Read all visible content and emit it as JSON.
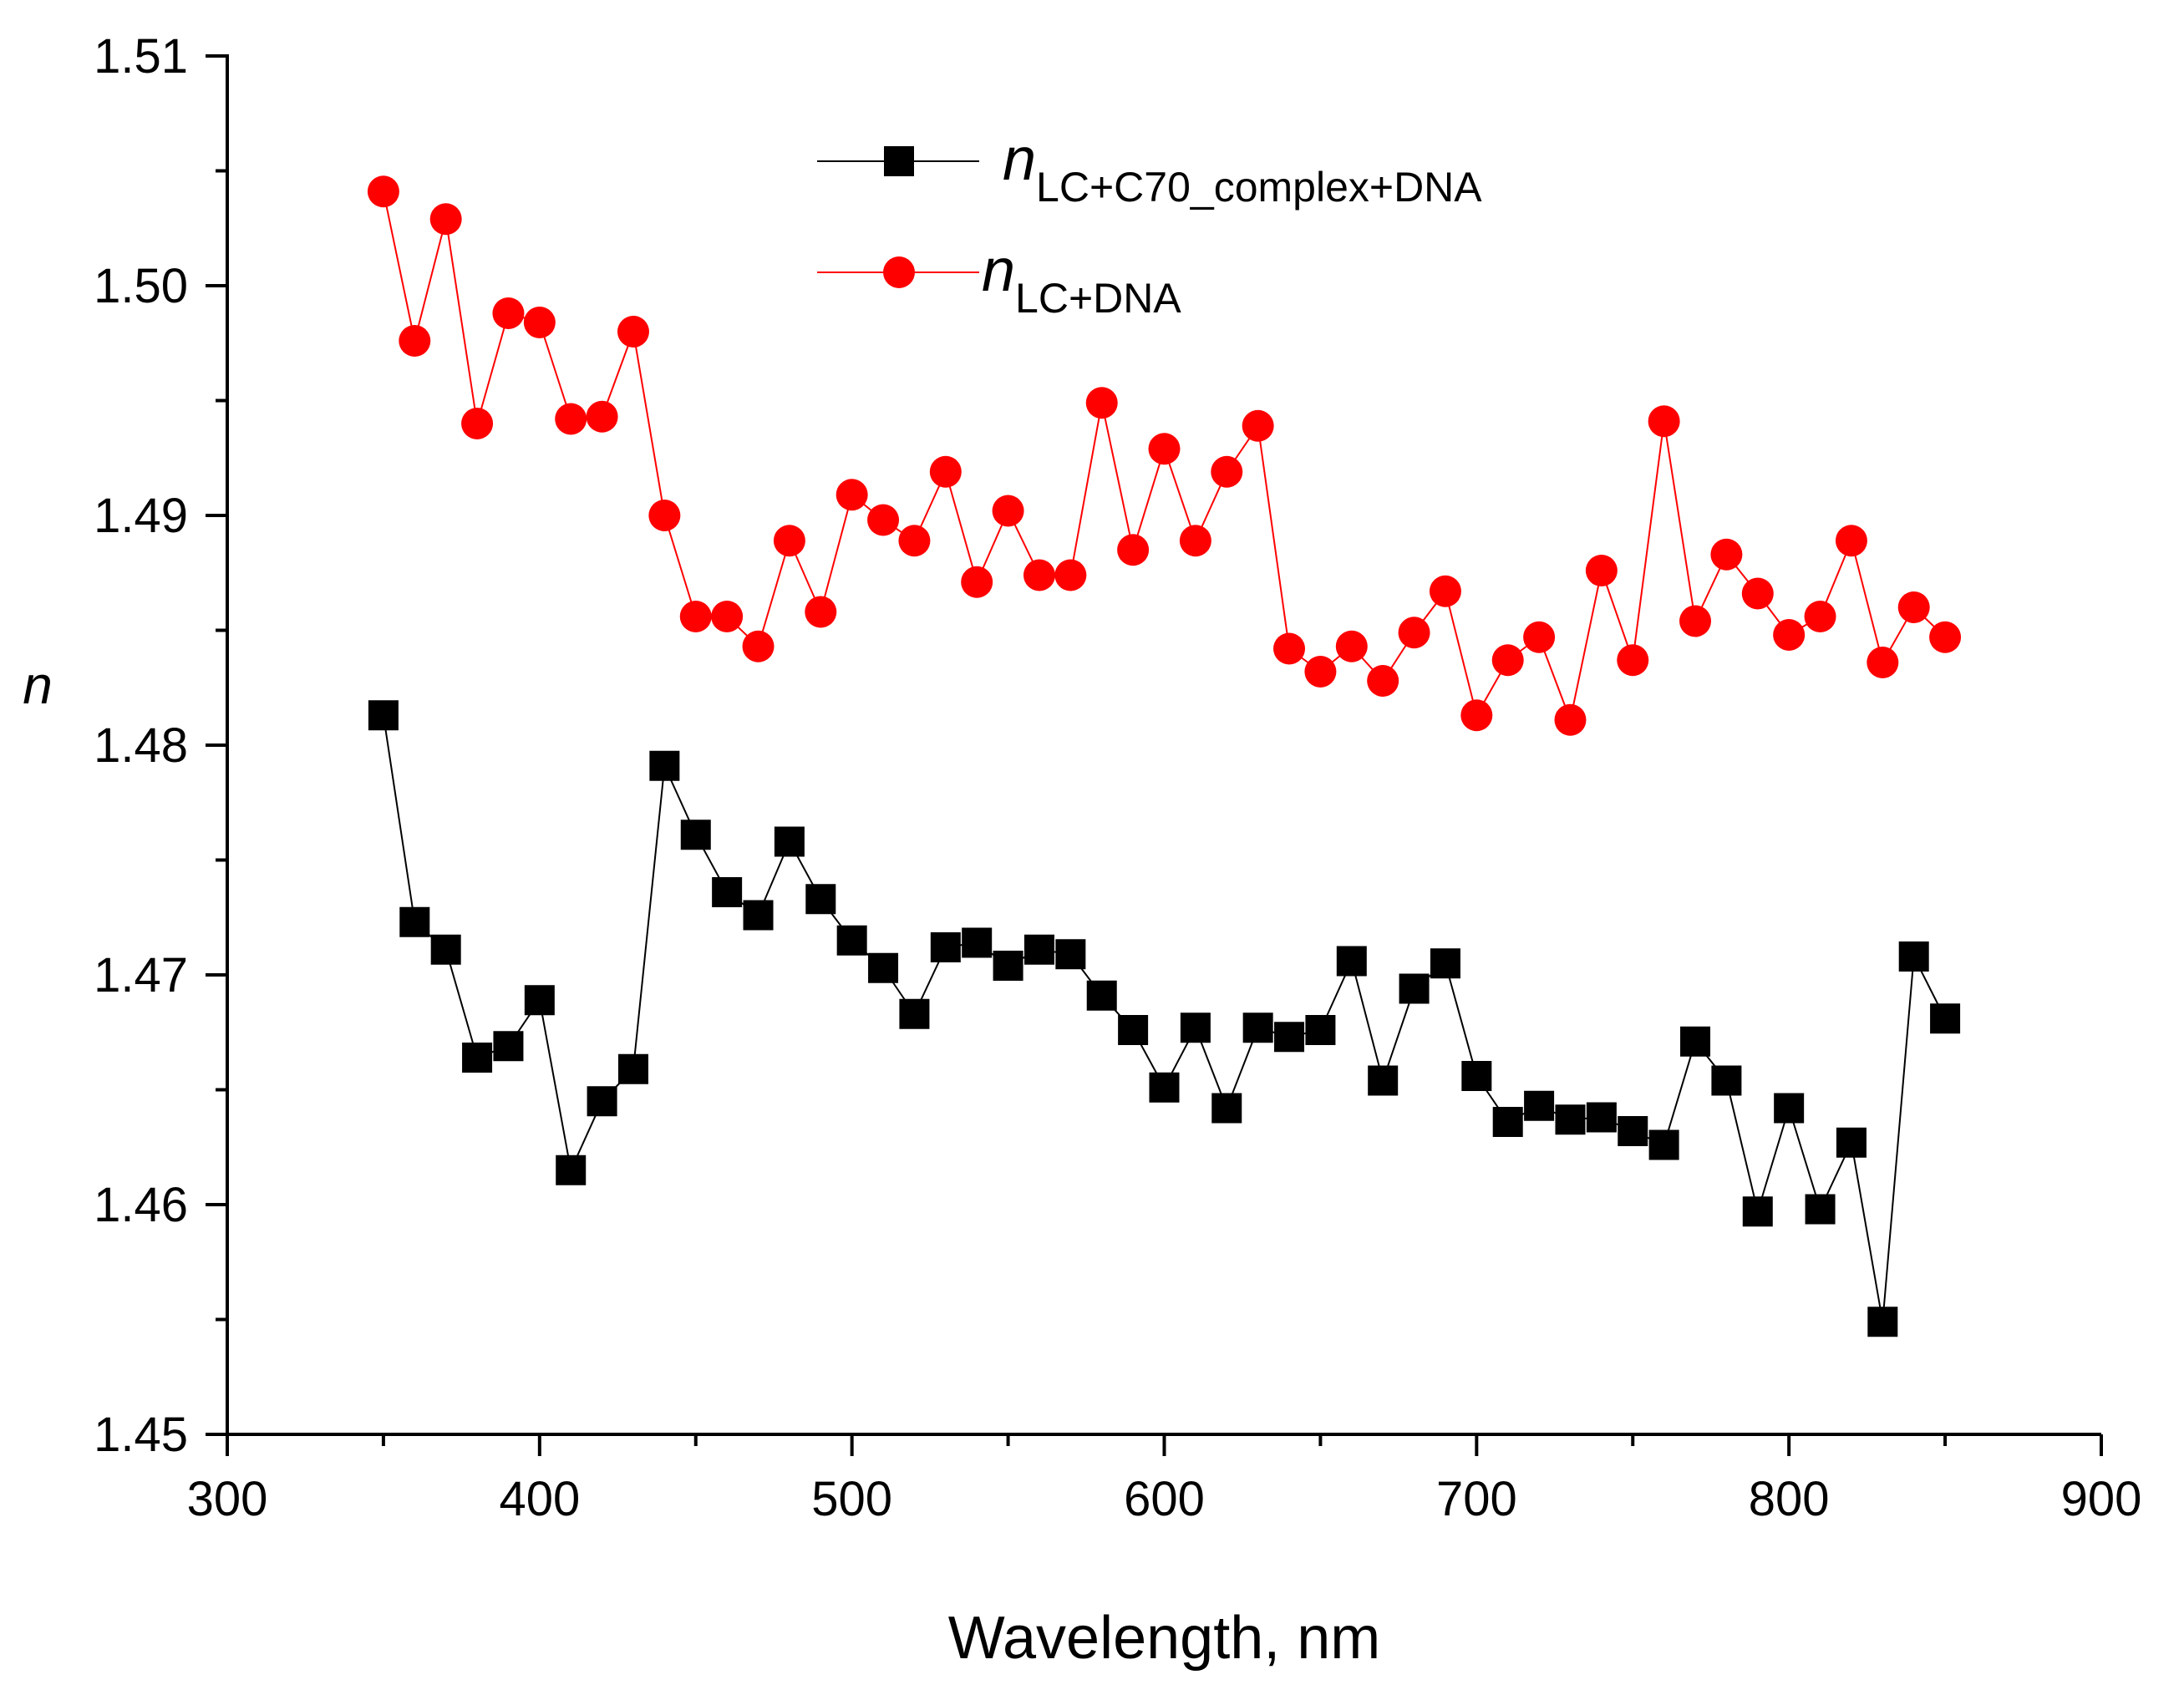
{
  "chart_data": {
    "type": "line",
    "title": "",
    "xlabel": "Wavelength, nm",
    "ylabel": "n",
    "xlim": [
      300,
      900
    ],
    "ylim": [
      1.45,
      1.51
    ],
    "xticks": [
      "300",
      "400",
      "500",
      "600",
      "700",
      "800",
      "900"
    ],
    "yticks": [
      "1.45",
      "1.46",
      "1.47",
      "1.48",
      "1.49",
      "1.50",
      "1.51"
    ],
    "x": [
      350,
      360,
      370,
      380,
      390,
      400,
      410,
      420,
      430,
      440,
      450,
      460,
      470,
      480,
      490,
      500,
      510,
      520,
      530,
      540,
      550,
      560,
      570,
      580,
      590,
      600,
      610,
      620,
      630,
      640,
      650,
      660,
      670,
      680,
      690,
      700,
      710,
      720,
      730,
      740,
      750,
      760,
      770,
      780,
      790,
      800,
      810,
      820,
      830,
      840,
      850
    ],
    "legend_position": "top-center",
    "series": [
      {
        "name": "LC+C70_complex+DNA",
        "legend_symbol": "n",
        "legend_subscript": "LC+C70_complex+DNA",
        "color": "#000000",
        "marker": "square",
        "values": [
          1.4813,
          1.4723,
          1.4711,
          1.4664,
          1.4669,
          1.4689,
          1.4615,
          1.4645,
          1.4659,
          1.4791,
          1.4761,
          1.4736,
          1.4726,
          1.4758,
          1.4733,
          1.4715,
          1.4703,
          1.4683,
          1.4712,
          1.4714,
          1.4704,
          1.4711,
          1.4709,
          1.4691,
          1.4676,
          1.4651,
          1.4677,
          1.4642,
          1.4677,
          1.4673,
          1.4676,
          1.4706,
          1.4654,
          1.4694,
          1.4705,
          1.4656,
          1.4636,
          1.4643,
          1.4637,
          1.4638,
          1.4632,
          1.4626,
          1.4671,
          1.4654,
          1.4597,
          1.4642,
          1.4598,
          1.4627,
          1.4549,
          1.4708,
          1.4681
        ]
      },
      {
        "name": "LC+DNA",
        "legend_symbol": "n",
        "legend_subscript": "LC+DNA",
        "color": "#ff0000",
        "marker": "circle",
        "values": [
          1.5041,
          1.4976,
          1.5029,
          1.494,
          1.4988,
          1.4984,
          1.4942,
          1.4943,
          1.498,
          1.49,
          1.4856,
          1.4856,
          1.4843,
          1.4889,
          1.4858,
          1.4909,
          1.4898,
          1.4889,
          1.4919,
          1.4871,
          1.4902,
          1.4874,
          1.4874,
          1.4949,
          1.4885,
          1.4929,
          1.4889,
          1.4919,
          1.4939,
          1.4842,
          1.4832,
          1.4843,
          1.4828,
          1.4849,
          1.4867,
          1.4813,
          1.4837,
          1.4847,
          1.4811,
          1.4876,
          1.4837,
          1.4941,
          1.4854,
          1.4883,
          1.4866,
          1.4848,
          1.4856,
          1.4889,
          1.4836,
          1.486,
          1.4847
        ]
      }
    ]
  }
}
